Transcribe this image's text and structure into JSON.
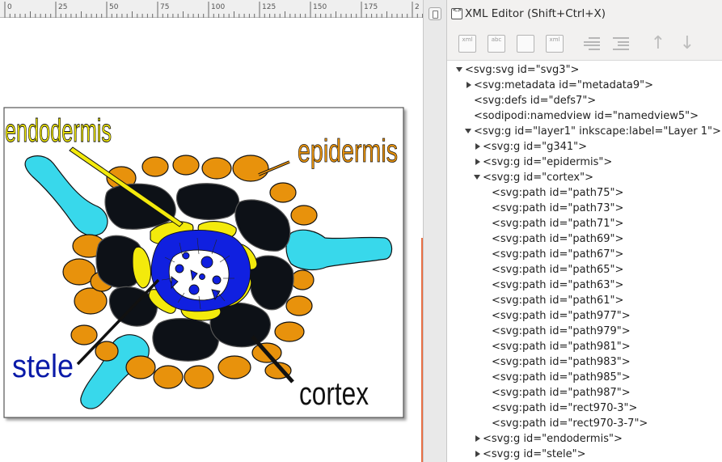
{
  "ruler": {
    "labels": [
      "0",
      "25",
      "50",
      "75",
      "100",
      "125",
      "150",
      "175",
      "2"
    ]
  },
  "drawing": {
    "labels": {
      "endodermis": "endodermis",
      "epidermis": "epidermis",
      "stele": "stele",
      "cortex": "cortex"
    },
    "colors": {
      "epidermis": "#e8920c",
      "root_hair": "#38d8eb",
      "cortex": "#0d1117",
      "endodermis": "#f3ea0c",
      "stele": "#1020e0",
      "endodermis_label": "#f3ea0c",
      "epidermis_label": "#e8920c",
      "stele_label": "#0a1aa8",
      "cortex_label": "#111111"
    }
  },
  "panel": {
    "title": "XML Editor (Shift+Ctrl+X)",
    "toolbar": [
      {
        "name": "new-element-node-button",
        "icon": "new-element-node-icon",
        "text": "xml"
      },
      {
        "name": "new-text-node-button",
        "icon": "new-text-node-icon",
        "text": "abc"
      },
      {
        "name": "duplicate-node-button",
        "icon": "duplicate-node-icon",
        "text": ""
      },
      {
        "name": "delete-node-button",
        "icon": "delete-node-icon",
        "text": "xml"
      },
      {
        "name": "unindent-node-button",
        "icon": "unindent-icon",
        "text": ""
      },
      {
        "name": "indent-node-button",
        "icon": "indent-icon",
        "text": ""
      },
      {
        "name": "raise-node-button",
        "icon": "arrow-up-icon",
        "text": "↑"
      },
      {
        "name": "lower-node-button",
        "icon": "arrow-down-icon",
        "text": "↓"
      }
    ],
    "tree": [
      {
        "label": "<svg:svg id=\"svg3\">",
        "depth": 0,
        "state": "open"
      },
      {
        "label": "<svg:metadata id=\"metadata9\">",
        "depth": 1,
        "state": "closed"
      },
      {
        "label": "<svg:defs id=\"defs7\">",
        "depth": 1,
        "state": "none"
      },
      {
        "label": "<sodipodi:namedview id=\"namedview5\">",
        "depth": 1,
        "state": "none"
      },
      {
        "label": "<svg:g id=\"layer1\" inkscape:label=\"Layer 1\">",
        "depth": 1,
        "state": "open"
      },
      {
        "label": "<svg:g id=\"g341\">",
        "depth": 2,
        "state": "closed"
      },
      {
        "label": "<svg:g id=\"epidermis\">",
        "depth": 2,
        "state": "closed"
      },
      {
        "label": "<svg:g id=\"cortex\">",
        "depth": 2,
        "state": "open"
      },
      {
        "label": "<svg:path id=\"path75\">",
        "depth": 3,
        "state": "none"
      },
      {
        "label": "<svg:path id=\"path73\">",
        "depth": 3,
        "state": "none"
      },
      {
        "label": "<svg:path id=\"path71\">",
        "depth": 3,
        "state": "none"
      },
      {
        "label": "<svg:path id=\"path69\">",
        "depth": 3,
        "state": "none"
      },
      {
        "label": "<svg:path id=\"path67\">",
        "depth": 3,
        "state": "none"
      },
      {
        "label": "<svg:path id=\"path65\">",
        "depth": 3,
        "state": "none"
      },
      {
        "label": "<svg:path id=\"path63\">",
        "depth": 3,
        "state": "none"
      },
      {
        "label": "<svg:path id=\"path61\">",
        "depth": 3,
        "state": "none"
      },
      {
        "label": "<svg:path id=\"path977\">",
        "depth": 3,
        "state": "none"
      },
      {
        "label": "<svg:path id=\"path979\">",
        "depth": 3,
        "state": "none"
      },
      {
        "label": "<svg:path id=\"path981\">",
        "depth": 3,
        "state": "none"
      },
      {
        "label": "<svg:path id=\"path983\">",
        "depth": 3,
        "state": "none"
      },
      {
        "label": "<svg:path id=\"path985\">",
        "depth": 3,
        "state": "none"
      },
      {
        "label": "<svg:path id=\"path987\">",
        "depth": 3,
        "state": "none"
      },
      {
        "label": "<svg:path id=\"rect970-3\">",
        "depth": 3,
        "state": "none"
      },
      {
        "label": "<svg:path id=\"rect970-3-7\">",
        "depth": 3,
        "state": "none"
      },
      {
        "label": "<svg:g id=\"endodermis\">",
        "depth": 2,
        "state": "closed"
      },
      {
        "label": "<svg:g id=\"stele\">",
        "depth": 2,
        "state": "closed"
      }
    ]
  }
}
